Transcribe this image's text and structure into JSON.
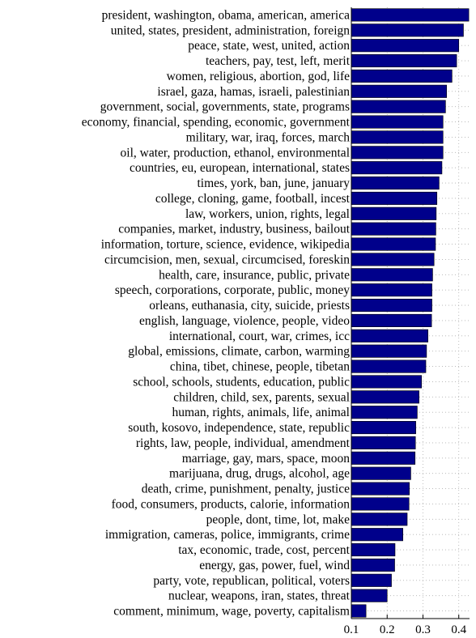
{
  "chart_data": {
    "type": "bar",
    "orientation": "horizontal",
    "bar_color": "#00008b",
    "grid": true,
    "xlim": [
      0.1,
      0.43
    ],
    "x_ticks": [
      "0.1",
      "0.2",
      "0.3",
      "0.4"
    ],
    "x_tick_values": [
      0.1,
      0.2,
      0.3,
      0.4
    ],
    "categories": [
      "president, washington, obama, american, america",
      "united, states, president, administration, foreign",
      "peace, state, west, united, action",
      "teachers, pay, test, left, merit",
      "women, religious, abortion, god, life",
      "israel, gaza, hamas, israeli, palestinian",
      "government, social, governments, state, programs",
      "economy, financial, spending, economic, government",
      "military, war, iraq, forces, march",
      "oil, water, production, ethanol, environmental",
      "countries, eu, european, international, states",
      "times, york, ban, june, january",
      "college, cloning, game, football, incest",
      "law, workers, union, rights, legal",
      "companies, market, industry, business, bailout",
      "information, torture, science, evidence, wikipedia",
      "circumcision, men, sexual, circumcised, foreskin",
      "health, care, insurance, public, private",
      "speech, corporations, corporate, public, money",
      "orleans, euthanasia, city, suicide, priests",
      "english, language, violence, people, video",
      "international, court, war, crimes, icc",
      "global, emissions, climate, carbon, warming",
      "china, tibet, chinese, people, tibetan",
      "school, schools, students, education, public",
      "children, child, sex, parents, sexual",
      "human, rights, animals, life, animal",
      "south, kosovo, independence, state, republic",
      "rights, law, people, individual, amendment",
      "marriage, gay, mars, space, moon",
      "marijuana, drug, drugs, alcohol, age",
      "death, crime, punishment, penalty, justice",
      "food, consumers, products, calorie, information",
      "people, dont, time, lot, make",
      "immigration, cameras, police, immigrants, crime",
      "tax, economic, trade, cost, percent",
      "energy, gas, power, fuel, wind",
      "party, vote, republican, political, voters",
      "nuclear, weapons, iran, states, threat",
      "comment, minimum, wage, poverty, capitalism"
    ],
    "values": [
      0.428,
      0.413,
      0.4,
      0.394,
      0.381,
      0.366,
      0.363,
      0.356,
      0.356,
      0.356,
      0.353,
      0.345,
      0.339,
      0.337,
      0.336,
      0.335,
      0.331,
      0.327,
      0.325,
      0.325,
      0.324,
      0.314,
      0.31,
      0.308,
      0.296,
      0.289,
      0.284,
      0.28,
      0.279,
      0.278,
      0.266,
      0.262,
      0.261,
      0.256,
      0.244,
      0.222,
      0.221,
      0.212,
      0.2,
      0.141
    ]
  }
}
